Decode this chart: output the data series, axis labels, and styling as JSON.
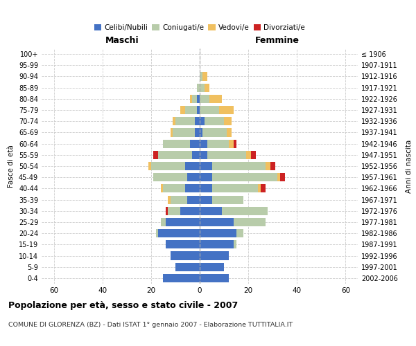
{
  "age_groups": [
    "100+",
    "95-99",
    "90-94",
    "85-89",
    "80-84",
    "75-79",
    "70-74",
    "65-69",
    "60-64",
    "55-59",
    "50-54",
    "45-49",
    "40-44",
    "35-39",
    "30-34",
    "25-29",
    "20-24",
    "15-19",
    "10-14",
    "5-9",
    "0-4"
  ],
  "birth_years": [
    "≤ 1906",
    "1907-1911",
    "1912-1916",
    "1917-1921",
    "1922-1926",
    "1927-1931",
    "1932-1936",
    "1937-1941",
    "1942-1946",
    "1947-1951",
    "1952-1956",
    "1957-1961",
    "1962-1966",
    "1967-1971",
    "1972-1976",
    "1977-1981",
    "1982-1986",
    "1987-1991",
    "1992-1996",
    "1997-2001",
    "2002-2006"
  ],
  "male_celibe": [
    0,
    0,
    0,
    0,
    1,
    1,
    2,
    2,
    4,
    3,
    6,
    5,
    6,
    5,
    8,
    14,
    17,
    14,
    12,
    10,
    15
  ],
  "male_coniugato": [
    0,
    0,
    0,
    1,
    2,
    5,
    8,
    9,
    11,
    14,
    14,
    14,
    9,
    7,
    5,
    2,
    1,
    0,
    0,
    0,
    0
  ],
  "male_vedovo": [
    0,
    0,
    0,
    0,
    1,
    2,
    1,
    1,
    0,
    0,
    1,
    0,
    1,
    1,
    0,
    0,
    0,
    0,
    0,
    0,
    0
  ],
  "male_divorziato": [
    0,
    0,
    0,
    0,
    0,
    0,
    0,
    0,
    0,
    2,
    0,
    0,
    0,
    0,
    1,
    0,
    0,
    0,
    0,
    0,
    0
  ],
  "female_celibe": [
    0,
    0,
    0,
    0,
    0,
    0,
    2,
    1,
    3,
    3,
    5,
    5,
    5,
    5,
    9,
    14,
    15,
    14,
    12,
    10,
    12
  ],
  "female_coniugato": [
    0,
    0,
    1,
    2,
    4,
    8,
    8,
    10,
    9,
    16,
    22,
    27,
    19,
    13,
    19,
    13,
    3,
    1,
    0,
    0,
    0
  ],
  "female_vedovo": [
    0,
    0,
    2,
    2,
    5,
    6,
    3,
    2,
    2,
    2,
    2,
    1,
    1,
    0,
    0,
    0,
    0,
    0,
    0,
    0,
    0
  ],
  "female_divorziato": [
    0,
    0,
    0,
    0,
    0,
    0,
    0,
    0,
    1,
    2,
    2,
    2,
    2,
    0,
    0,
    0,
    0,
    0,
    0,
    0,
    0
  ],
  "color_celibe": "#4472c4",
  "color_coniugato": "#b8ccaa",
  "color_vedovo": "#f0c060",
  "color_divorziato": "#cc2222",
  "title": "Popolazione per età, sesso e stato civile - 2007",
  "subtitle": "COMUNE DI GLORENZA (BZ) - Dati ISTAT 1° gennaio 2007 - Elaborazione TUTTITALIA.IT",
  "xlabel_left": "Maschi",
  "xlabel_right": "Femmine",
  "ylabel_left": "Fasce di età",
  "ylabel_right": "Anni di nascita",
  "xlim": 65,
  "background_color": "#ffffff",
  "grid_color": "#cccccc"
}
